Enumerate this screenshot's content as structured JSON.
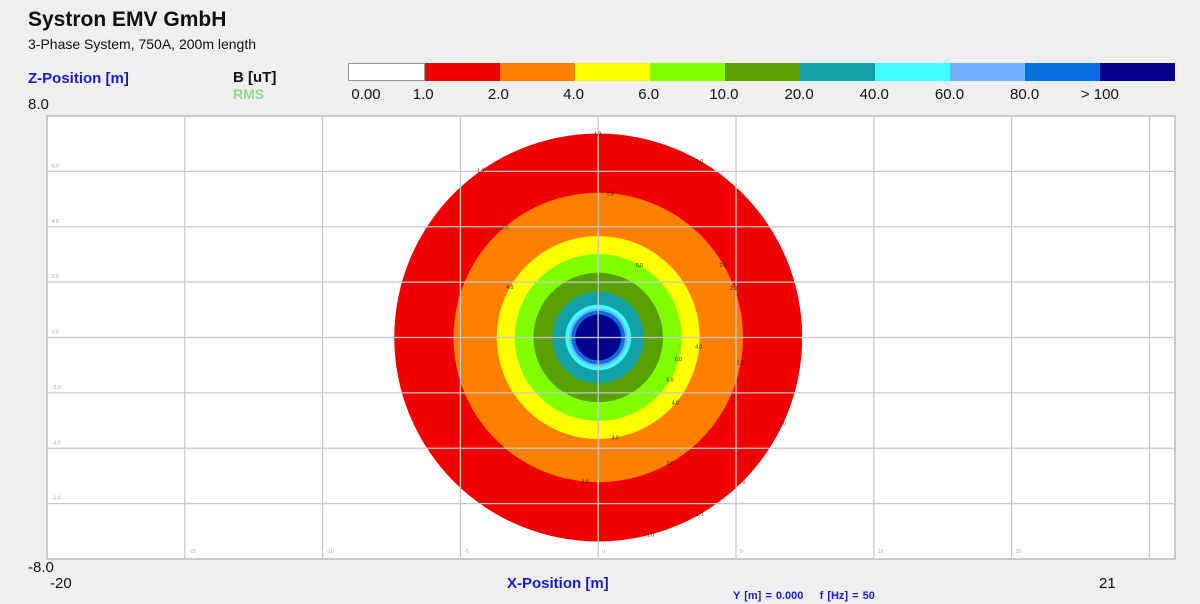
{
  "header": {
    "title": "Systron EMV GmbH",
    "subtitle": "3-Phase System, 750A, 200m length"
  },
  "legend": {
    "quantity": "B [uT]",
    "mode": "RMS",
    "colors": [
      "#ffffff",
      "#f00000",
      "#ff8000",
      "#ffff00",
      "#80ff00",
      "#58a000",
      "#10a0a8",
      "#40ffff",
      "#70b0ff",
      "#0a6ee0",
      "#00008c"
    ],
    "tick_labels": [
      "0.00",
      "1.0",
      "2.0",
      "4.0",
      "6.0",
      "10.0",
      "20.0",
      "40.0",
      "60.0",
      "80.0",
      "> 100"
    ]
  },
  "footer": {
    "y_position": "Y [m] = 0.000",
    "frequency": "f [Hz] = 50"
  },
  "chart_data": {
    "type": "heatmap",
    "title": "Systron EMV GmbH",
    "subtitle": "3-Phase System, 750A, 200m length",
    "xlabel": "X-Position [m]",
    "ylabel": "Z-Position [m]",
    "xlim": [
      -20,
      21
    ],
    "ylim": [
      -8,
      8
    ],
    "x_min_label": "-20",
    "x_max_label": "21",
    "y_max_label": "8.0",
    "y_min_label": "-8.0",
    "x_ticks": [
      -15,
      -10,
      -5,
      0,
      5,
      10,
      15,
      20
    ],
    "x_tick_labels": [
      "-15",
      "-10",
      "-5",
      "0",
      "5",
      "10",
      "15",
      ""
    ],
    "y_ticks": [
      6,
      4,
      2,
      0,
      -2,
      -4,
      -6
    ],
    "y_tick_labels": [
      "6.0",
      "4.0",
      "2.0",
      "0.0",
      "-2.0",
      "-4.0",
      "-6.0"
    ],
    "grid": true,
    "center": [
      0,
      0
    ],
    "contours": [
      {
        "level": "1.0",
        "radius_m": 7.4,
        "color": "#f00000"
      },
      {
        "level": "2.0",
        "radius_m": 5.25,
        "color": "#ff8000"
      },
      {
        "level": "4.0",
        "radius_m": 3.68,
        "color": "#ffff00"
      },
      {
        "level": "6.0",
        "radius_m": 3.03,
        "color": "#80ff00"
      },
      {
        "level": "10.0",
        "radius_m": 2.35,
        "color": "#58a000"
      },
      {
        "level": "20.0",
        "radius_m": 1.66,
        "color": "#10a0a8"
      },
      {
        "level": "40.0",
        "radius_m": 1.19,
        "color": "#40ffff"
      },
      {
        "level": "60.0",
        "radius_m": 1.05,
        "color": "#70b0ff"
      },
      {
        "level": "80.0",
        "radius_m": 0.97,
        "color": "#0a6ee0"
      },
      {
        "level": "> 100",
        "radius_m": 0.83,
        "color": "#00008c"
      }
    ],
    "contour_labels": [
      "1.0",
      "2.0",
      "4.0",
      "6.0"
    ]
  }
}
